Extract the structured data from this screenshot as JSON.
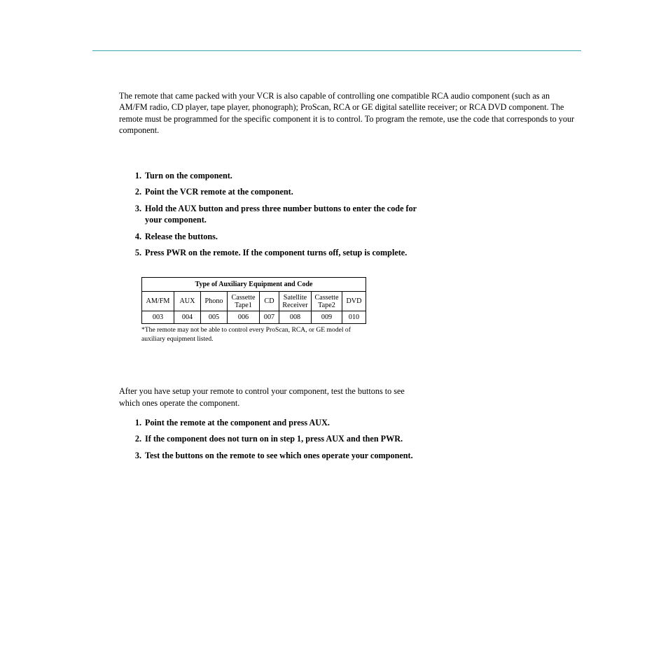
{
  "intro": "The remote that came packed with your VCR is also capable of controlling one compatible RCA audio component (such as an AM/FM radio, CD player, tape player, phonograph); ProScan, RCA or GE digital satellite receiver; or RCA DVD component.  The remote must be programmed for the specific component it is to control.  To program the remote, use the code that corresponds to your component.",
  "steps1": {
    "s1": "Turn on the component.",
    "s2": "Point the VCR remote at the component.",
    "s3": "Hold the AUX button and press three number buttons to enter the code for your component.",
    "s4": "Release the buttons.",
    "s5": "Press PWR on the remote.  If the component turns off, setup is complete."
  },
  "table": {
    "title": "Type of  Auxiliary Equipment and Code",
    "columns": [
      {
        "label": "AM/FM",
        "code": "003",
        "wclass": "cw0"
      },
      {
        "label": "AUX",
        "code": "004",
        "wclass": "cw1"
      },
      {
        "label": "Phono",
        "code": "005",
        "wclass": "cw2"
      },
      {
        "label": "Cassette\nTape1",
        "code": "006",
        "wclass": "cw3"
      },
      {
        "label": "CD",
        "code": "007",
        "wclass": "cw4"
      },
      {
        "label": "Satellite\nReceiver",
        "code": "008",
        "wclass": "cw5"
      },
      {
        "label": "Cassette\nTape2",
        "code": "009",
        "wclass": "cw6"
      },
      {
        "label": "DVD",
        "code": "010",
        "wclass": "cw7"
      }
    ]
  },
  "footnote": "*The remote may not be able to control every ProScan, RCA, or GE model of auxiliary equipment listed.",
  "testIntro": "After you have setup your remote to control your component, test the buttons to see which ones operate the component.",
  "steps2": {
    "s1": "Point the remote at the component and press AUX.",
    "s2": "If the component does not turn on in step 1, press AUX and then PWR.",
    "s3": "Test the buttons on the remote to see which ones operate your component."
  },
  "colors": {
    "rule": "#3aa9b3",
    "text": "#000000",
    "background": "#ffffff"
  }
}
